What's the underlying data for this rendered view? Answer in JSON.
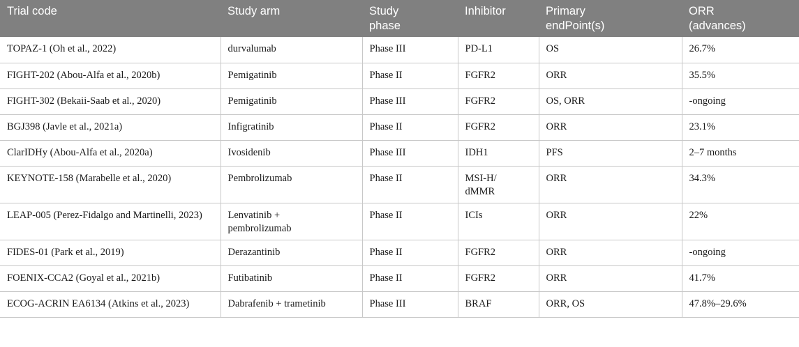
{
  "table": {
    "headers": [
      "Trial code",
      "Study arm",
      "Study\nphase",
      "Inhibitor",
      "Primary\nendPoint(s)",
      "ORR\n(advances)"
    ],
    "rows": [
      [
        "TOPAZ-1 (Oh et al., 2022)",
        "durvalumab",
        "Phase III",
        "PD-L1",
        "OS",
        "26.7%"
      ],
      [
        "FIGHT-202 (Abou-Alfa et al., 2020b)",
        "Pemigatinib",
        "Phase II",
        "FGFR2",
        "ORR",
        "35.5%"
      ],
      [
        "FIGHT-302 (Bekaii-Saab et al., 2020)",
        "Pemigatinib",
        "Phase III",
        "FGFR2",
        "OS, ORR",
        "-ongoing"
      ],
      [
        "BGJ398 (Javle et al., 2021a)",
        "Infigratinib",
        "Phase II",
        "FGFR2",
        "ORR",
        "23.1%"
      ],
      [
        "ClarIDHy (Abou-Alfa et al., 2020a)",
        "Ivosidenib",
        "Phase III",
        "IDH1",
        "PFS",
        "2–7 months"
      ],
      [
        "KEYNOTE-158 (Marabelle et al., 2020)",
        "Pembrolizumab",
        "Phase II",
        "MSI-H/\ndMMR",
        "ORR",
        "34.3%"
      ],
      [
        "LEAP-005 (Perez-Fidalgo and Martinelli, 2023)",
        "Lenvatinib +\npembrolizumab",
        "Phase II",
        "ICIs",
        "ORR",
        "22%"
      ],
      [
        "FIDES-01 (Park et al., 2019)",
        "Derazantinib",
        "Phase II",
        "FGFR2",
        "ORR",
        "-ongoing"
      ],
      [
        "FOENIX-CCA2 (Goyal et al., 2021b)",
        "Futibatinib",
        "Phase II",
        "FGFR2",
        "ORR",
        "41.7%"
      ],
      [
        "ECOG-ACRIN EA6134 (Atkins et al., 2023)",
        "Dabrafenib + trametinib",
        "Phase III",
        "BRAF",
        "ORR, OS",
        "47.8%–29.6%"
      ]
    ]
  }
}
